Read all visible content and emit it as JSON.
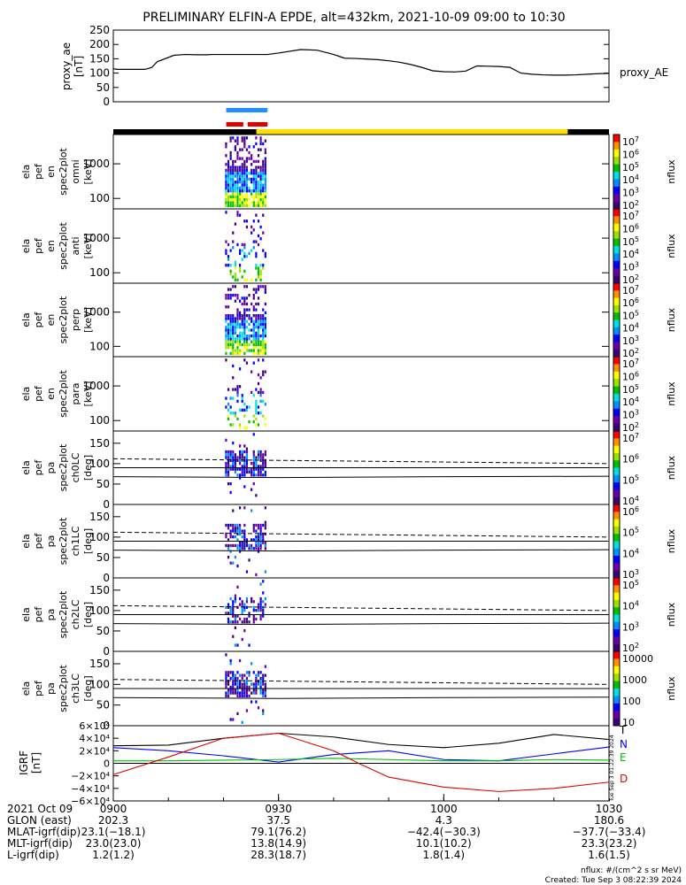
{
  "title": "PRELIMINARY ELFIN-A EPDE, alt=432km, 2021-10-09 09:00 to 10:30",
  "colors": {
    "bar_black": "#000000",
    "bar_yellow": "#ffe000",
    "bar_blue": "#1e90ff",
    "bar_red": "#e00000",
    "T": "#000000",
    "N": "#0000ff",
    "E": "#00c000",
    "D": "#e00000"
  },
  "chart_data": [
    {
      "type": "line",
      "name": "proxy_ae",
      "ylabel": [
        "proxy_ae",
        "[nT]"
      ],
      "legend": "proxy_AE",
      "yticks": [
        "250",
        "200",
        "150",
        "100",
        "50",
        "0"
      ],
      "ylim": [
        0,
        250
      ],
      "x": [
        0,
        0.8,
        1.5,
        2.5,
        4.5,
        5.5,
        6,
        7,
        8,
        11,
        13,
        15,
        17,
        18,
        20,
        21,
        22,
        23,
        24,
        25,
        26,
        27,
        28,
        30,
        34,
        37,
        40,
        42,
        44,
        46,
        48,
        50,
        52,
        54,
        56,
        58,
        60,
        62,
        64,
        66,
        68,
        70,
        72,
        74,
        76,
        78,
        80,
        82,
        84,
        86,
        88,
        90
      ],
      "values": [
        115,
        113,
        113,
        113,
        113,
        113,
        114,
        120,
        140,
        162,
        165,
        164,
        164,
        165,
        165,
        165,
        165,
        165,
        165,
        165,
        165,
        165,
        165,
        170,
        182,
        180,
        165,
        152,
        151,
        149,
        147,
        143,
        138,
        130,
        120,
        108,
        105,
        104,
        107,
        125,
        124,
        123,
        120,
        100,
        96,
        94,
        93,
        93,
        94,
        96,
        98,
        99
      ]
    },
    {
      "type": "heatmap",
      "name": "omni",
      "labels": [
        "ela",
        "pef",
        "en",
        "spec2plot",
        "omni",
        "[keV]"
      ],
      "yticks": [
        "1000",
        "100"
      ],
      "ylim": [
        50,
        7000
      ],
      "colorbar": {
        "label": "nflux",
        "ticks": [
          "10^7",
          "10^6",
          "10^5",
          "10^4",
          "10^3",
          "10^2"
        ]
      }
    },
    {
      "type": "heatmap",
      "name": "anti",
      "labels": [
        "ela",
        "pef",
        "en",
        "spec2plot",
        "anti",
        "[keV]"
      ],
      "yticks": [
        "1000",
        "100"
      ],
      "ylim": [
        50,
        7000
      ],
      "colorbar": {
        "label": "nflux",
        "ticks": [
          "10^7",
          "10^6",
          "10^5",
          "10^4",
          "10^3",
          "10^2"
        ]
      }
    },
    {
      "type": "heatmap",
      "name": "perp",
      "labels": [
        "ela",
        "pef",
        "en",
        "spec2plot",
        "perp",
        "[keV]"
      ],
      "yticks": [
        "1000",
        "100"
      ],
      "ylim": [
        50,
        7000
      ],
      "colorbar": {
        "label": "nflux",
        "ticks": [
          "10^7",
          "10^6",
          "10^5",
          "10^4",
          "10^3",
          "10^2"
        ]
      }
    },
    {
      "type": "heatmap",
      "name": "para",
      "labels": [
        "ela",
        "pef",
        "en",
        "spec2plot",
        "para",
        "[keV]"
      ],
      "yticks": [
        "1000",
        "100"
      ],
      "ylim": [
        50,
        7000
      ],
      "colorbar": {
        "label": "nflux",
        "ticks": [
          "10^7",
          "10^6",
          "10^5",
          "10^4",
          "10^3",
          "10^2"
        ]
      }
    },
    {
      "type": "heatmap",
      "name": "ch0LC",
      "labels": [
        "ela",
        "pef",
        "pa",
        "spec2plot",
        "ch0LC",
        "[deg]"
      ],
      "yticks": [
        "150",
        "100",
        "50",
        "0"
      ],
      "ylim": [
        0,
        180
      ],
      "colorbar": {
        "label": "nflux",
        "ticks": [
          "10^7",
          "10^6",
          "10^5",
          "10^4"
        ]
      }
    },
    {
      "type": "heatmap",
      "name": "ch1LC",
      "labels": [
        "ela",
        "pef",
        "pa",
        "spec2plot",
        "ch1LC",
        "[deg]"
      ],
      "yticks": [
        "150",
        "100",
        "50",
        "0"
      ],
      "ylim": [
        0,
        180
      ],
      "colorbar": {
        "label": "nflux",
        "ticks": [
          "10^6",
          "10^5",
          "10^4",
          "10^3"
        ]
      }
    },
    {
      "type": "heatmap",
      "name": "ch2LC",
      "labels": [
        "ela",
        "pef",
        "pa",
        "spec2plot",
        "ch2LC",
        "[deg]"
      ],
      "yticks": [
        "150",
        "100",
        "50",
        "0"
      ],
      "ylim": [
        0,
        180
      ],
      "colorbar": {
        "label": "nflux",
        "ticks": [
          "10^5",
          "10^4",
          "10^3",
          "10^2"
        ]
      }
    },
    {
      "type": "heatmap",
      "name": "ch3LC",
      "labels": [
        "ela",
        "pef",
        "pa",
        "spec2plot",
        "ch3LC",
        "[deg]"
      ],
      "yticks": [
        "150",
        "100",
        "50",
        "0"
      ],
      "ylim": [
        0,
        180
      ],
      "colorbar": {
        "label": "nflux",
        "ticks": [
          "10000",
          "1000",
          "100",
          "10"
        ]
      }
    },
    {
      "type": "line",
      "name": "IGRF",
      "ylabel": [
        "IGRF",
        "[nT]"
      ],
      "yticks": [
        "6×10⁴",
        "4×10⁴",
        "2×10⁴",
        "0",
        "−2×10⁴",
        "−4×10⁴",
        "−6×10⁴"
      ],
      "ylim": [
        -60000,
        60000
      ],
      "series": [
        {
          "name": "T",
          "x": [
            0,
            10,
            20,
            30,
            40,
            50,
            60,
            70,
            80,
            90
          ],
          "values": [
            28000,
            29000,
            40000,
            48000,
            42000,
            30000,
            25000,
            32000,
            46000,
            38000
          ]
        },
        {
          "name": "N",
          "x": [
            0,
            10,
            20,
            30,
            40,
            50,
            60,
            70,
            80,
            90
          ],
          "values": [
            25000,
            20000,
            12000,
            2000,
            14000,
            20000,
            6000,
            4000,
            15000,
            26000
          ]
        },
        {
          "name": "E",
          "x": [
            0,
            10,
            20,
            30,
            40,
            50,
            60,
            70,
            80,
            90
          ],
          "values": [
            4000,
            4000,
            5000,
            6000,
            8000,
            6000,
            4000,
            4000,
            6000,
            5000
          ]
        },
        {
          "name": "D",
          "x": [
            0,
            10,
            20,
            30,
            40,
            45,
            50,
            60,
            70,
            80,
            90
          ],
          "values": [
            -18000,
            10000,
            40000,
            48000,
            20000,
            -2000,
            -22000,
            -38000,
            -45000,
            -40000,
            -30000
          ]
        }
      ]
    }
  ],
  "heatmap_palette": [
    "#3c007a",
    "#6a00a8",
    "#0000ff",
    "#0090ff",
    "#00e0e0",
    "#00c000",
    "#a0e000",
    "#ffff00",
    "#ff9000",
    "#ff0000"
  ],
  "x_ticks": [
    "0900",
    "0930",
    "1000",
    "1030"
  ],
  "footer": {
    "rows": [
      [
        "2021 Oct 09",
        "0900",
        "",
        "",
        ""
      ],
      [
        "GLON (east)",
        "202.3",
        "37.5",
        "4.3",
        "180.6"
      ],
      [
        "MLAT-igrf(dip)",
        "23.1(−18.1)",
        "79.1(76.2)",
        "−42.4(−30.3)",
        "−37.7(−33.4)"
      ],
      [
        "MLT-igrf(dip)",
        "23.0(23.0)",
        "13.8(14.9)",
        "10.1(10.2)",
        "23.3(23.2)"
      ],
      [
        "L-igrf(dip)",
        "1.2(1.2)",
        "28.3(18.7)",
        "1.8(1.4)",
        "1.6(1.5)"
      ]
    ],
    "nflux_units": "nflux: #/(cm^2 s sr MeV)",
    "created": "Created: Tue Sep  3 08:22:39 2024",
    "side_stamp": "Tue Sep  3 01:22:39 2024"
  }
}
